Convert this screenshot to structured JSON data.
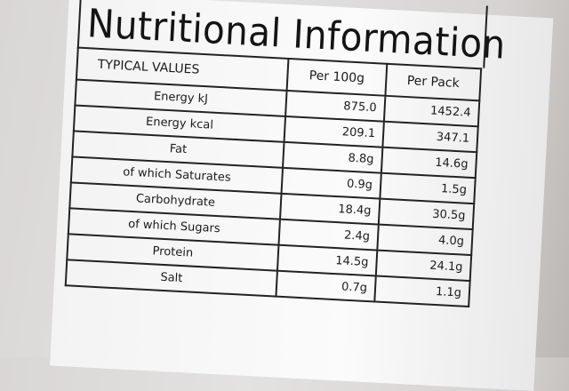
{
  "title": "Nutritional Information",
  "table": {
    "header": [
      "TYPICAL VALUES",
      "Per 100g",
      "Per Pack"
    ],
    "rows": [
      [
        "Energy kJ",
        "875.0",
        "1452.4"
      ],
      [
        "Energy kcal",
        "209.1",
        "347.1"
      ],
      [
        "Fat",
        "8.8g",
        "14.6g"
      ],
      [
        "of which Saturates",
        "0.9g",
        "1.5g"
      ],
      [
        "Carbohydrate",
        "18.4g",
        "30.5g"
      ],
      [
        "of which Sugars",
        "2.4g",
        "4.0g"
      ],
      [
        "Protein",
        "14.5g",
        "24.1g"
      ],
      [
        "Salt",
        "0.7g",
        "1.1g"
      ]
    ]
  }
}
